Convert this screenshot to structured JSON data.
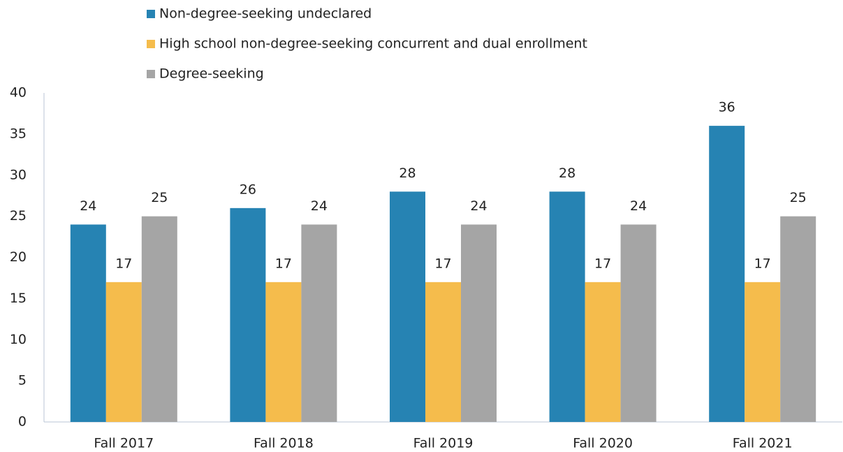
{
  "chart_data": {
    "type": "bar",
    "categories": [
      "Fall 2017",
      "Fall 2018",
      "Fall 2019",
      "Fall 2020",
      "Fall 2021"
    ],
    "series": [
      {
        "name": "Non-degree-seeking undeclared",
        "color": "#2683b3",
        "values": [
          24,
          26,
          28,
          28,
          36
        ]
      },
      {
        "name": "High school non-degree-seeking concurrent and dual enrollment",
        "color": "#f5bc4c",
        "values": [
          17,
          17,
          17,
          17,
          17
        ]
      },
      {
        "name": "Degree-seeking",
        "color": "#a5a5a5",
        "values": [
          25,
          24,
          24,
          24,
          25
        ]
      }
    ],
    "ylim": [
      0,
      40
    ],
    "yticks": [
      0,
      5,
      10,
      15,
      20,
      25,
      30,
      35,
      40
    ],
    "grid": false,
    "legend": "top-left"
  }
}
